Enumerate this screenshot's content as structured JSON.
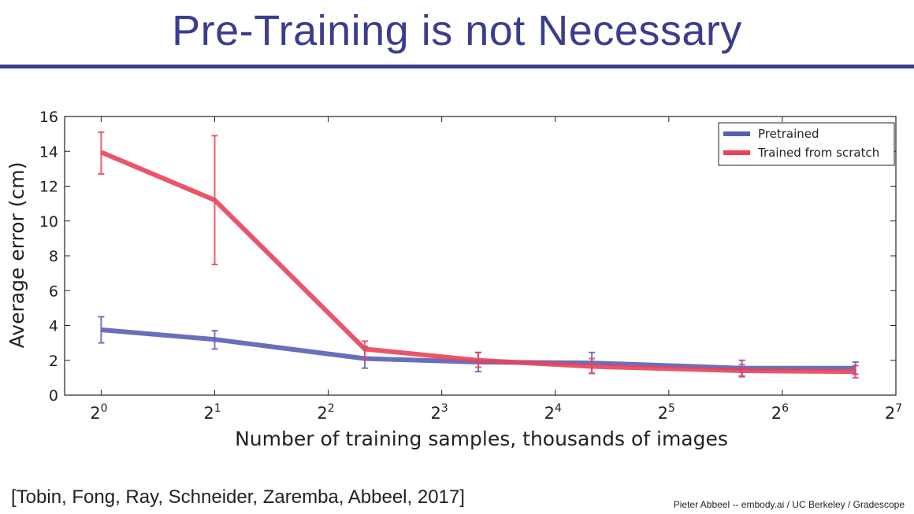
{
  "slide": {
    "title": "Pre-Training is not Necessary",
    "citation": "[Tobin, Fong, Ray, Schneider, Zaremba, Abbeel, 2017]",
    "credit": "Pieter Abbeel -- embody.ai / UC Berkeley / Gradescope"
  },
  "chart_data": {
    "type": "line",
    "title": "",
    "xlabel": "Number of training samples, thousands of images",
    "ylabel": "Average error (cm)",
    "xscale": "log2",
    "xlim": [
      0.8,
      128
    ],
    "ylim": [
      0,
      16
    ],
    "xticks": [
      1,
      2,
      4,
      8,
      16,
      32,
      64,
      128
    ],
    "xtick_labels": [
      {
        "base": "2",
        "exp": "0"
      },
      {
        "base": "2",
        "exp": "1"
      },
      {
        "base": "2",
        "exp": "2"
      },
      {
        "base": "2",
        "exp": "3"
      },
      {
        "base": "2",
        "exp": "4"
      },
      {
        "base": "2",
        "exp": "5"
      },
      {
        "base": "2",
        "exp": "6"
      },
      {
        "base": "2",
        "exp": "7"
      }
    ],
    "yticks": [
      0,
      2,
      4,
      6,
      8,
      10,
      12,
      14,
      16
    ],
    "grid": false,
    "legend_position": "top-right",
    "x": [
      1,
      2,
      5,
      10,
      20,
      50,
      100
    ],
    "series": [
      {
        "name": "Pretrained",
        "color": "#5a5fb4",
        "y": [
          3.75,
          3.2,
          2.1,
          1.9,
          1.85,
          1.55,
          1.55
        ],
        "err_low": [
          3.0,
          2.65,
          1.55,
          1.35,
          1.25,
          1.1,
          1.2
        ],
        "err_high": [
          4.5,
          3.7,
          2.8,
          2.45,
          2.45,
          2.0,
          1.9
        ]
      },
      {
        "name": "Trained from scratch",
        "color": "#e8435a",
        "y": [
          13.95,
          11.2,
          2.65,
          2.0,
          1.65,
          1.4,
          1.35
        ],
        "err_low": [
          12.7,
          7.5,
          2.1,
          1.6,
          1.25,
          1.05,
          1.0
        ],
        "err_high": [
          15.1,
          14.9,
          3.1,
          2.45,
          2.1,
          1.75,
          1.7
        ]
      }
    ]
  }
}
